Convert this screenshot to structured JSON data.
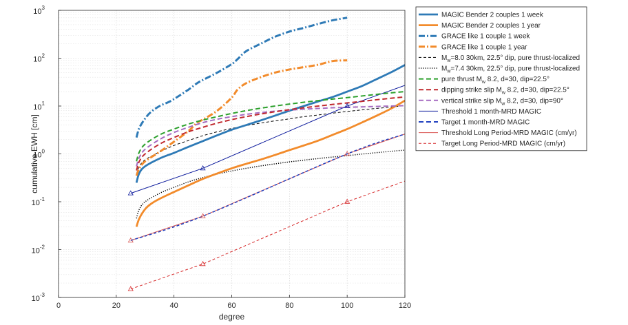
{
  "chart_data": {
    "type": "line",
    "xlabel": "degree",
    "ylabel": "cumulative EWH [cm]",
    "xlim": [
      0,
      120
    ],
    "ylim": [
      0.001,
      1000
    ],
    "yscale": "log",
    "grid": true,
    "legend_position": "outside-right",
    "x_ticks": [
      "0",
      "20",
      "40",
      "60",
      "80",
      "100",
      "120"
    ],
    "y_ticks": [
      {
        "base": "10",
        "exp": "-3"
      },
      {
        "base": "10",
        "exp": "-2"
      },
      {
        "base": "10",
        "exp": "-1"
      },
      {
        "base": "10",
        "exp": "0"
      },
      {
        "base": "10",
        "exp": "1"
      },
      {
        "base": "10",
        "exp": "2"
      },
      {
        "base": "10",
        "exp": "3"
      }
    ],
    "series": [
      {
        "key": "s1",
        "color": "#2e7ab6",
        "style": "solid",
        "width": 2.8,
        "label": {
          "pre": "MAGIC Bender 2 couples 1 week",
          "sub": "",
          "post": ""
        },
        "x": [
          27,
          28,
          30,
          35,
          40,
          45,
          50,
          55,
          60,
          65,
          70,
          75,
          80,
          85,
          90,
          95,
          100,
          105,
          110,
          115,
          120
        ],
        "y": [
          0.25,
          0.4,
          0.55,
          0.8,
          1.05,
          1.4,
          1.85,
          2.45,
          3.2,
          4.0,
          5.0,
          6.3,
          8.0,
          10.0,
          12.5,
          15.5,
          20,
          26,
          36,
          50,
          72
        ]
      },
      {
        "key": "s2",
        "color": "#f28b2b",
        "style": "solid",
        "width": 2.8,
        "label": {
          "pre": "MAGIC Bender 2 couples 1 year",
          "sub": "",
          "post": ""
        },
        "x": [
          27,
          28,
          30,
          32,
          35,
          40,
          45,
          50,
          55,
          60,
          65,
          70,
          75,
          80,
          85,
          90,
          95,
          100,
          105,
          110,
          115,
          120
        ],
        "y": [
          0.03,
          0.045,
          0.07,
          0.09,
          0.115,
          0.16,
          0.22,
          0.3,
          0.39,
          0.5,
          0.62,
          0.76,
          0.95,
          1.2,
          1.5,
          1.9,
          2.5,
          3.3,
          4.5,
          6.2,
          8.7,
          13
        ]
      },
      {
        "key": "s3",
        "color": "#2e7ab6",
        "style": "dashdot",
        "width": 3,
        "label": {
          "pre": "GRACE like 1 couple 1 week",
          "sub": "",
          "post": ""
        },
        "x": [
          27,
          28,
          30,
          32,
          35,
          38,
          40,
          45,
          48,
          50,
          55,
          60,
          62,
          65,
          70,
          75,
          80,
          85,
          90,
          95,
          100
        ],
        "y": [
          2.2,
          3.5,
          5.5,
          7.5,
          10,
          12,
          14,
          22,
          30,
          35,
          50,
          75,
          95,
          140,
          200,
          280,
          360,
          430,
          520,
          620,
          700
        ]
      },
      {
        "key": "s4",
        "color": "#f28b2b",
        "style": "dashdot",
        "width": 3,
        "label": {
          "pre": "GRACE like 1 couple 1 year",
          "sub": "",
          "post": ""
        },
        "x": [
          27,
          28,
          30,
          35,
          40,
          45,
          48,
          50,
          55,
          60,
          62,
          65,
          70,
          75,
          80,
          85,
          90,
          95,
          100
        ],
        "y": [
          0.35,
          0.5,
          0.7,
          1.1,
          1.8,
          3.0,
          4.5,
          5.2,
          8,
          15,
          22,
          30,
          40,
          50,
          58,
          65,
          73,
          87,
          90
        ]
      },
      {
        "key": "s5",
        "color": "#000000",
        "style": "dashed",
        "width": 1,
        "label": {
          "pre": "M",
          "sub": "w",
          "post": "=8.0 30km, 22.5° dip, pure thrust-localized"
        },
        "x": [
          27,
          28,
          30,
          35,
          40,
          45,
          50,
          55,
          60,
          65,
          70,
          75,
          80,
          85,
          90,
          95,
          100,
          105,
          110,
          115,
          120
        ],
        "y": [
          0.38,
          0.55,
          0.75,
          1.1,
          1.5,
          1.9,
          2.4,
          2.9,
          3.4,
          3.9,
          4.4,
          4.9,
          5.4,
          6.0,
          6.5,
          7.1,
          7.7,
          8.3,
          8.9,
          9.5,
          10.2
        ]
      },
      {
        "key": "s6",
        "color": "#000000",
        "style": "dotted",
        "width": 1.5,
        "label": {
          "pre": "M",
          "sub": "w",
          "post": "=7.4 30km, 22.5° dip, pure thrust-localized"
        },
        "x": [
          27,
          28,
          30,
          35,
          40,
          45,
          50,
          55,
          60,
          65,
          70,
          75,
          80,
          85,
          90,
          95,
          100,
          105,
          110,
          115,
          120
        ],
        "y": [
          0.045,
          0.07,
          0.1,
          0.15,
          0.2,
          0.26,
          0.32,
          0.38,
          0.44,
          0.5,
          0.56,
          0.62,
          0.68,
          0.74,
          0.8,
          0.86,
          0.92,
          0.99,
          1.06,
          1.13,
          1.2
        ]
      },
      {
        "key": "s7",
        "color": "#2ca02c",
        "style": "dashed",
        "width": 2,
        "label": {
          "pre": "pure thrust M",
          "sub": "w",
          "post": " 8.2, d=30, dip=22.5°"
        },
        "x": [
          27,
          28,
          30,
          35,
          40,
          45,
          50,
          55,
          60,
          65,
          70,
          75,
          80,
          85,
          90,
          95,
          100,
          105,
          110,
          115,
          120
        ],
        "y": [
          0.7,
          1.1,
          1.6,
          2.5,
          3.3,
          4.2,
          5.1,
          6.0,
          7.0,
          8.0,
          9.0,
          10.0,
          11.0,
          12.0,
          13.0,
          14.0,
          15.0,
          16.2,
          17.5,
          18.8,
          20
        ]
      },
      {
        "key": "s8",
        "color": "#c0282d",
        "style": "dashed",
        "width": 2,
        "label": {
          "pre": "dipping strike slip M",
          "sub": "w",
          "post": " 8.2, d=30, dip=22.5°"
        },
        "x": [
          27,
          28,
          30,
          35,
          40,
          45,
          50,
          55,
          60,
          65,
          70,
          75,
          80,
          85,
          90,
          95,
          100,
          105,
          110,
          115,
          120
        ],
        "y": [
          0.45,
          0.7,
          1.0,
          1.6,
          2.2,
          2.9,
          3.6,
          4.4,
          5.2,
          6.0,
          6.8,
          7.6,
          8.4,
          9.2,
          10.0,
          10.8,
          11.6,
          12.5,
          13.5,
          14.5,
          15.5
        ]
      },
      {
        "key": "s9",
        "color": "#a56cc1",
        "style": "dashed",
        "width": 2,
        "label": {
          "pre": "vertical strike slip M",
          "sub": "w",
          "post": " 8.2, d=30, dip=90°"
        },
        "x": [
          27,
          28,
          30,
          35,
          40,
          45,
          50,
          55,
          60,
          65,
          70,
          75,
          80,
          85,
          90,
          95,
          100,
          105,
          110,
          115,
          120
        ],
        "y": [
          0.55,
          0.85,
          1.25,
          2.0,
          2.8,
          3.6,
          4.5,
          5.3,
          6.0,
          6.7,
          7.3,
          7.8,
          8.2,
          8.6,
          8.9,
          9.2,
          9.4,
          9.6,
          9.8,
          10.0,
          10.2
        ]
      },
      {
        "key": "s10",
        "color": "#0c1a9c",
        "style": "solid",
        "width": 1,
        "marker": "triangle",
        "label": {
          "pre": "Threshold 1 month-MRD MAGIC",
          "sub": "",
          "post": ""
        },
        "x": [
          25,
          50,
          100,
          120
        ],
        "y": [
          0.15,
          0.5,
          10,
          27
        ],
        "marker_x": [
          25,
          50,
          100
        ],
        "marker_y": [
          0.15,
          0.5,
          10
        ]
      },
      {
        "key": "s11",
        "color": "#1f3fbf",
        "style": "dashed",
        "width": 2,
        "label": {
          "pre": "Target 1 month-MRD MAGIC",
          "sub": "",
          "post": ""
        },
        "x": [],
        "y": []
      },
      {
        "key": "s12",
        "color": "#d9534f",
        "style": "solid",
        "width": 1,
        "marker": "triangle",
        "label": {
          "pre": "Threshold Long Period-MRD MAGIC (cm/yr)",
          "sub": "",
          "post": ""
        },
        "x": [
          25,
          50,
          100,
          120
        ],
        "y": [
          0.0155,
          0.05,
          1.0,
          2.6
        ],
        "marker_x": [
          25,
          50,
          100
        ],
        "marker_y": [
          0.0155,
          0.05,
          1.0
        ]
      },
      {
        "key": "s13",
        "color": "#d62728",
        "style": "dashed",
        "width": 1,
        "marker": "triangle",
        "label": {
          "pre": "Target Long Period-MRD MAGIC (cm/yr)",
          "sub": "",
          "post": ""
        },
        "x": [
          25,
          50,
          100,
          120
        ],
        "y": [
          0.0015,
          0.005,
          0.1,
          0.27
        ],
        "marker_x": [
          25,
          50,
          100
        ],
        "marker_y": [
          0.0015,
          0.005,
          0.1
        ]
      },
      {
        "key": "s11b",
        "color": "#1f3fbf",
        "style": "dashed",
        "width": 1.5,
        "legend": false,
        "label": {
          "pre": "",
          "sub": "",
          "post": ""
        },
        "x": [
          25,
          50,
          100,
          120
        ],
        "y": [
          0.0155,
          0.05,
          1.0,
          2.6
        ]
      }
    ]
  }
}
